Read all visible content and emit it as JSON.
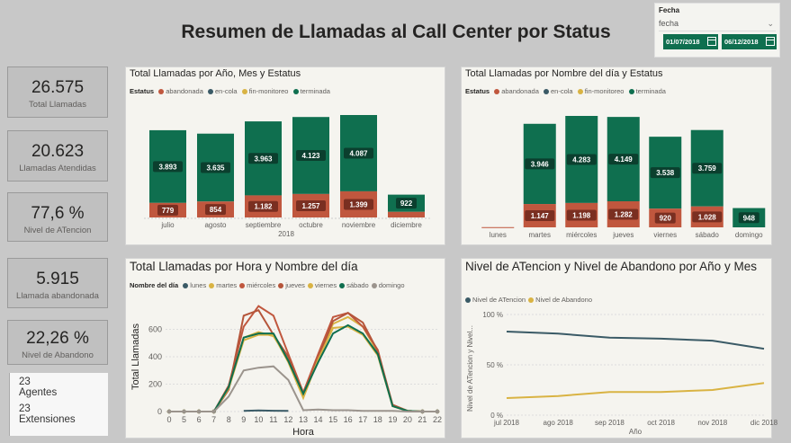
{
  "title": "Resumen de Llamadas al Call Center por Status",
  "slicer": {
    "label": "Fecha",
    "dropdown": "fecha",
    "start": "01/07/2018",
    "end": "06/12/2018"
  },
  "kpis": [
    {
      "value": "26.575",
      "label": "Total Llamadas"
    },
    {
      "value": "20.623",
      "label": "Llamadas Atendidas"
    },
    {
      "value": "77,6 %",
      "label": "Nivel de ATencion"
    },
    {
      "value": "5.915",
      "label": "Llamada abandonada"
    },
    {
      "value": "22,26 %",
      "label": "Nivel de Abandono"
    }
  ],
  "agents": {
    "count1": "23",
    "label1": "Agentes",
    "count2": "23",
    "label2": "Extensiones"
  },
  "colors": {
    "abandonada": "#c0573e",
    "en-cola": "#3a5a66",
    "fin-monitoreo": "#d9b343",
    "terminada": "#0f6f4f"
  },
  "chart1": {
    "title": "Total Llamadas por Año, Mes y Estatus",
    "legend_title": "Estatus",
    "legend": [
      "abandonada",
      "en-cola",
      "fin-monitoreo",
      "terminada"
    ],
    "year": "2018",
    "chart_data": {
      "type": "bar",
      "categories": [
        "julio",
        "agosto",
        "septiembre",
        "octubre",
        "noviembre",
        "diciembre"
      ],
      "series": [
        {
          "name": "abandonada",
          "values": [
            779,
            854,
            1182,
            1257,
            1399,
            300
          ]
        },
        {
          "name": "terminada",
          "values": [
            3893,
            3635,
            3963,
            4123,
            4087,
            922
          ]
        }
      ],
      "labels_abandonada": [
        "779",
        "854",
        "1.182",
        "1.257",
        "1.399",
        ""
      ],
      "labels_terminada": [
        "3.893",
        "3.635",
        "3.963",
        "4.123",
        "4.087",
        "922"
      ]
    }
  },
  "chart2": {
    "title": "Total Llamadas por Nombre del día y Estatus",
    "legend_title": "Estatus",
    "legend": [
      "abandonada",
      "en-cola",
      "fin-monitoreo",
      "terminada"
    ],
    "chart_data": {
      "type": "bar",
      "categories": [
        "lunes",
        "martes",
        "miércoles",
        "jueves",
        "viernes",
        "sábado",
        "domingo"
      ],
      "series": [
        {
          "name": "abandonada",
          "values": [
            10,
            1147,
            1198,
            1282,
            920,
            1028,
            0
          ]
        },
        {
          "name": "terminada",
          "values": [
            0,
            3946,
            4283,
            4149,
            3538,
            3759,
            948
          ]
        }
      ],
      "labels_abandonada": [
        "",
        "1.147",
        "1.198",
        "1.282",
        "920",
        "1.028",
        ""
      ],
      "labels_terminada": [
        "",
        "3.946",
        "4.283",
        "4.149",
        "3.538",
        "3.759",
        "948"
      ]
    }
  },
  "chart3": {
    "title": "Total Llamadas por Hora y Nombre del día",
    "legend_title": "Nombre del día",
    "xlabel": "Hora",
    "ylabel": "Total Llamadas",
    "chart_data": {
      "type": "line",
      "x": [
        0,
        5,
        6,
        7,
        8,
        9,
        10,
        11,
        12,
        13,
        14,
        15,
        16,
        17,
        18,
        19,
        20,
        21,
        22
      ],
      "x_ticks": [
        "0",
        "5",
        "6",
        "7",
        "8",
        "9",
        "10",
        "11",
        "12",
        "13",
        "14",
        "15",
        "16",
        "17",
        "18",
        "19",
        "20",
        "21",
        "22"
      ],
      "ylim": [
        0,
        800
      ],
      "y_ticks": [
        0,
        200,
        400,
        600
      ],
      "series": [
        {
          "name": "lunes",
          "color": "#3a5a66",
          "values": [
            null,
            null,
            null,
            null,
            null,
            5,
            8,
            6,
            5,
            null,
            null,
            null,
            null,
            null,
            null,
            null,
            null,
            null,
            null
          ]
        },
        {
          "name": "martes",
          "color": "#d9b343",
          "values": [
            0,
            0,
            0,
            0,
            180,
            540,
            580,
            550,
            380,
            120,
            400,
            640,
            690,
            620,
            430,
            40,
            5,
            0,
            0
          ]
        },
        {
          "name": "miércoles",
          "color": "#c0573e",
          "values": [
            0,
            0,
            0,
            0,
            190,
            620,
            770,
            700,
            420,
            140,
            420,
            690,
            720,
            620,
            450,
            40,
            5,
            0,
            0
          ]
        },
        {
          "name": "jueves",
          "color": "#b5553a",
          "values": [
            0,
            0,
            0,
            0,
            160,
            700,
            740,
            560,
            400,
            130,
            390,
            660,
            720,
            650,
            440,
            50,
            5,
            0,
            0
          ]
        },
        {
          "name": "viernes",
          "color": "#d9b343",
          "values": [
            0,
            0,
            0,
            0,
            170,
            520,
            560,
            560,
            360,
            100,
            380,
            610,
            620,
            560,
            410,
            40,
            5,
            0,
            0
          ]
        },
        {
          "name": "sábado",
          "color": "#0f6f4f",
          "values": [
            0,
            0,
            0,
            0,
            180,
            540,
            570,
            570,
            370,
            130,
            360,
            570,
            630,
            570,
            420,
            40,
            5,
            0,
            0
          ]
        },
        {
          "name": "domingo",
          "color": "#9b948d",
          "values": [
            0,
            0,
            0,
            0,
            110,
            300,
            320,
            330,
            230,
            10,
            15,
            10,
            10,
            5,
            5,
            5,
            0,
            0,
            0
          ]
        }
      ]
    }
  },
  "chart4": {
    "title": "Nivel de ATencion y Nivel de Abandono por Año y Mes",
    "xlabel": "Año",
    "ylabel": "Nivel de ATencion y Nivel...",
    "chart_data": {
      "type": "line",
      "x": [
        "jul 2018",
        "ago 2018",
        "sep 2018",
        "oct 2018",
        "nov 2018",
        "dic 2018"
      ],
      "ylim": [
        0,
        100
      ],
      "y_ticks": [
        "0 %",
        "50 %",
        "100 %"
      ],
      "series": [
        {
          "name": "Nivel de ATencion",
          "color": "#3a5a66",
          "values": [
            83,
            81,
            77,
            76,
            74,
            66
          ]
        },
        {
          "name": "Nivel de Abandono",
          "color": "#d9b343",
          "values": [
            17,
            19,
            23,
            23,
            25,
            32
          ]
        }
      ]
    }
  }
}
